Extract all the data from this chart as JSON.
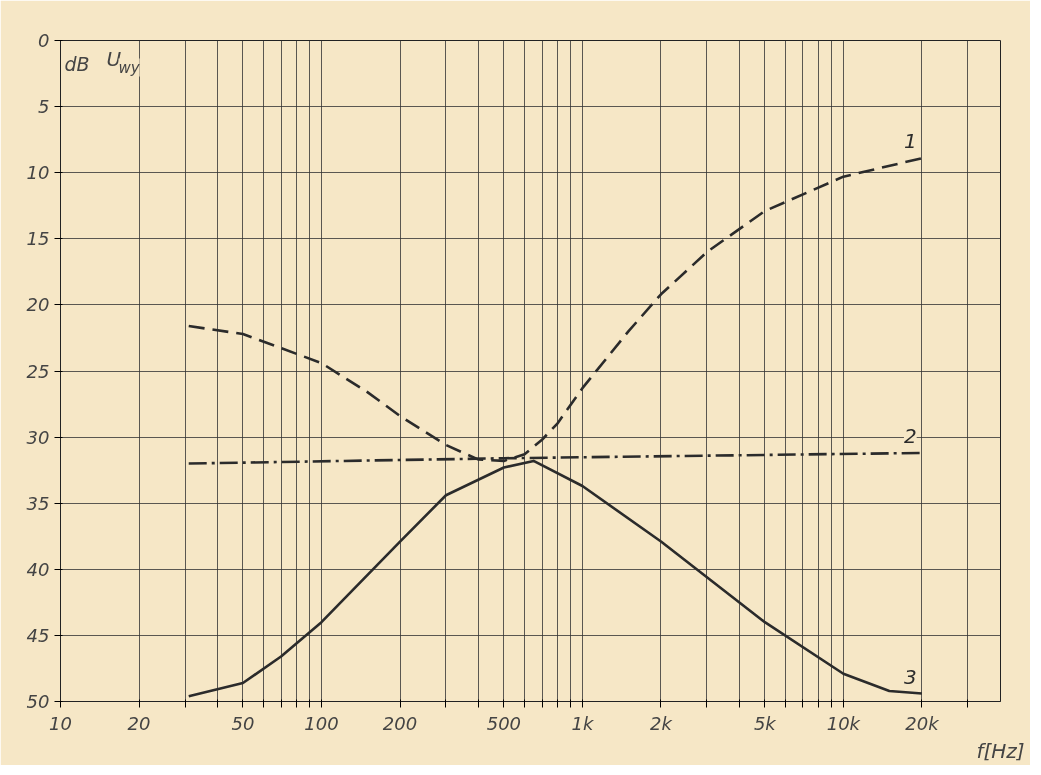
{
  "chart_data": {
    "type": "line",
    "xlabel": "f[Hz]",
    "ylabel": "dB",
    "annotations": [
      "U$_{wy}$"
    ],
    "log": "x",
    "grid": true,
    "marker": "none",
    "xlim": [
      10,
      40000
    ],
    "ylim": [
      50,
      0
    ],
    "xticks": [
      {
        "value": 10,
        "label": "10"
      },
      {
        "value": 20,
        "label": "20"
      },
      {
        "value": 30,
        "label": null
      },
      {
        "value": 40,
        "label": null
      },
      {
        "value": 50,
        "label": "50"
      },
      {
        "value": 60,
        "label": null
      },
      {
        "value": 70,
        "label": null
      },
      {
        "value": 80,
        "label": null
      },
      {
        "value": 90,
        "label": null
      },
      {
        "value": 100,
        "label": "100"
      },
      {
        "value": 200,
        "label": "200"
      },
      {
        "value": 300,
        "label": null
      },
      {
        "value": 400,
        "label": null
      },
      {
        "value": 500,
        "label": "500"
      },
      {
        "value": 600,
        "label": null
      },
      {
        "value": 700,
        "label": null
      },
      {
        "value": 800,
        "label": null
      },
      {
        "value": 900,
        "label": null
      },
      {
        "value": 1000,
        "label": "1k"
      },
      {
        "value": 2000,
        "label": "2k"
      },
      {
        "value": 3000,
        "label": null
      },
      {
        "value": 4000,
        "label": null
      },
      {
        "value": 5000,
        "label": "5k"
      },
      {
        "value": 6000,
        "label": null
      },
      {
        "value": 7000,
        "label": null
      },
      {
        "value": 8000,
        "label": null
      },
      {
        "value": 9000,
        "label": null
      },
      {
        "value": 10000,
        "label": "10k"
      },
      {
        "value": 20000,
        "label": "20k"
      },
      {
        "value": 30000,
        "label": null
      }
    ],
    "yticks": [
      0,
      5,
      10,
      15,
      20,
      25,
      30,
      35,
      40,
      45,
      50
    ],
    "series": [
      {
        "name": "1",
        "color": "#2b2b2b",
        "line_style": "dashed",
        "x": [
          31,
          50,
          100,
          150,
          200,
          300,
          400,
          500,
          600,
          700,
          800,
          1000,
          1500,
          2000,
          3000,
          5000,
          10000,
          20000
        ],
        "values": [
          21.6,
          22.2,
          24.4,
          26.6,
          28.4,
          30.6,
          31.7,
          31.8,
          31.3,
          30.2,
          29,
          26.3,
          22,
          19.2,
          16,
          12.9,
          10.3,
          8.9
        ]
      },
      {
        "name": "2",
        "color": "#2b2b2b",
        "line_style": "dashdot",
        "x": [
          31,
          500,
          20000
        ],
        "values": [
          32,
          31.6,
          31.2
        ]
      },
      {
        "name": "3",
        "color": "#2b2b2b",
        "line_style": "solid",
        "x": [
          31,
          50,
          70,
          100,
          200,
          300,
          500,
          650,
          1000,
          2000,
          5000,
          10000,
          15000,
          20000
        ],
        "values": [
          49.6,
          48.6,
          46.6,
          44,
          37.9,
          34.4,
          32.3,
          31.8,
          33.7,
          37.9,
          44,
          47.9,
          49.2,
          49.4
        ]
      }
    ]
  }
}
